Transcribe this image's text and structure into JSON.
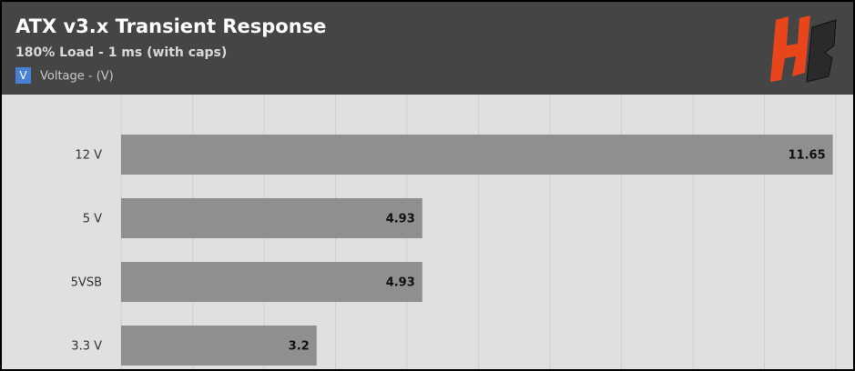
{
  "chart_data": {
    "type": "hbar",
    "title": "ATX v3.x Transient Response",
    "subtitle": "180% Load - 1 ms (with caps)",
    "legend_symbol": "V",
    "legend_label": "Voltage - (V)",
    "legend_color": "#4a7fd6",
    "categories": [
      "12 V",
      "5 V",
      "5VSB",
      "3.3 V"
    ],
    "values": [
      11.65,
      4.93,
      4.93,
      3.2
    ],
    "color": "#8f8f8f",
    "xlim": [
      0,
      11.7
    ],
    "xticks": [
      0,
      1.17,
      2.34,
      3.51,
      4.68,
      5.85,
      7.02,
      8.19,
      9.36,
      10.53,
      11.7
    ],
    "grid": true
  }
}
